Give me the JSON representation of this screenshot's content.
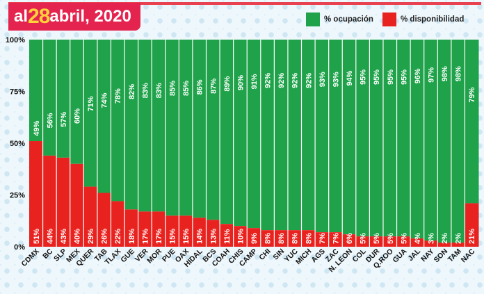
{
  "header": {
    "title_prefix": "al ",
    "title_day": "28",
    "title_suffix": "abril, 2020"
  },
  "legend": [
    {
      "label": "% ocupación",
      "color": "#1fa24a"
    },
    {
      "label": "% disponibilidad",
      "color": "#e8231f"
    }
  ],
  "chart_data": {
    "type": "bar",
    "stacked": true,
    "title": "",
    "xlabel": "",
    "ylabel": "",
    "ylim": [
      0,
      100
    ],
    "y_ticks": [
      "0%",
      "25%",
      "50%",
      "75%",
      "100%"
    ],
    "categories": [
      "CDMX",
      "BC",
      "SLP",
      "MEX",
      "QUER",
      "TAB",
      "TLAX",
      "GUE",
      "VER",
      "MOR",
      "PUE",
      "OAX",
      "HIDAL",
      "BCS",
      "COAH",
      "CHIS",
      "CAMP",
      "CHI",
      "SIN",
      "YUC",
      "MICH",
      "AGS",
      "ZAC",
      "N. LEON",
      "COL",
      "DUR",
      "Q.ROO",
      "GUA",
      "JAL",
      "NAY",
      "SON",
      "TAM",
      "NAC"
    ],
    "series": [
      {
        "name": "% ocupación",
        "color": "#1fa24a",
        "values": [
          49,
          56,
          57,
          60,
          71,
          74,
          78,
          82,
          83,
          83,
          85,
          85,
          86,
          87,
          89,
          90,
          91,
          92,
          92,
          92,
          92,
          93,
          93,
          94,
          95,
          95,
          95,
          95,
          96,
          97,
          98,
          98,
          79
        ],
        "labels": [
          "49%",
          "56%",
          "57%",
          "60%",
          "71%",
          "74%",
          "78%",
          "82%",
          "83%",
          "83%",
          "85%",
          "85%",
          "86%",
          "87%",
          "89%",
          "90%",
          "91%",
          "92%",
          "92%",
          "92%",
          "92%",
          "93%",
          "93%",
          "94%",
          "95%",
          "95%",
          "95%",
          "95%",
          "96%",
          "97%",
          "98%",
          "98%",
          "79%"
        ]
      },
      {
        "name": "% disponibilidad",
        "color": "#e8231f",
        "values": [
          51,
          44,
          43,
          40,
          29,
          26,
          22,
          18,
          17,
          17,
          15,
          15,
          14,
          13,
          11,
          10,
          9,
          8,
          8,
          8,
          8,
          7,
          7,
          6,
          5,
          5,
          5,
          5,
          4,
          3,
          2,
          2,
          21
        ],
        "labels": [
          "51%",
          "44%",
          "43%",
          "40%",
          "29%",
          "26%",
          "22%",
          "18%",
          "17%",
          "17%",
          "15%",
          "15%",
          "14%",
          "13%",
          "11%",
          "10%",
          "9%",
          "8%",
          "8%",
          "8%",
          "8%",
          "7%",
          "7%",
          "6%",
          "5%",
          "5%",
          "5%",
          "5%",
          "4%",
          "3%",
          "2%",
          "2%",
          "21%"
        ]
      }
    ],
    "grid": false,
    "legend_position": "top-right"
  }
}
